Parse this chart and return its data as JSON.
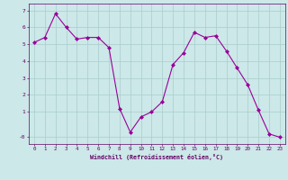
{
  "x": [
    0,
    1,
    2,
    3,
    4,
    5,
    6,
    7,
    8,
    9,
    10,
    11,
    12,
    13,
    14,
    15,
    16,
    17,
    18,
    19,
    20,
    21,
    22,
    23
  ],
  "y": [
    5.1,
    5.4,
    6.8,
    6.0,
    5.3,
    5.4,
    5.4,
    4.8,
    1.2,
    -0.2,
    0.7,
    1.0,
    1.6,
    3.8,
    4.5,
    5.7,
    5.4,
    5.5,
    4.6,
    3.6,
    2.6,
    1.1,
    -0.3,
    -0.5
  ],
  "line_color": "#990099",
  "marker": "D",
  "marker_size": 2,
  "bg_color": "#cce8e8",
  "grid_color": "#aacccc",
  "ylim": [
    -0.9,
    7.4
  ],
  "xlim": [
    -0.5,
    23.5
  ],
  "xlabel": "Windchill (Refroidissement éolien,°C)",
  "font_color": "#660066",
  "tick_color": "#660066"
}
